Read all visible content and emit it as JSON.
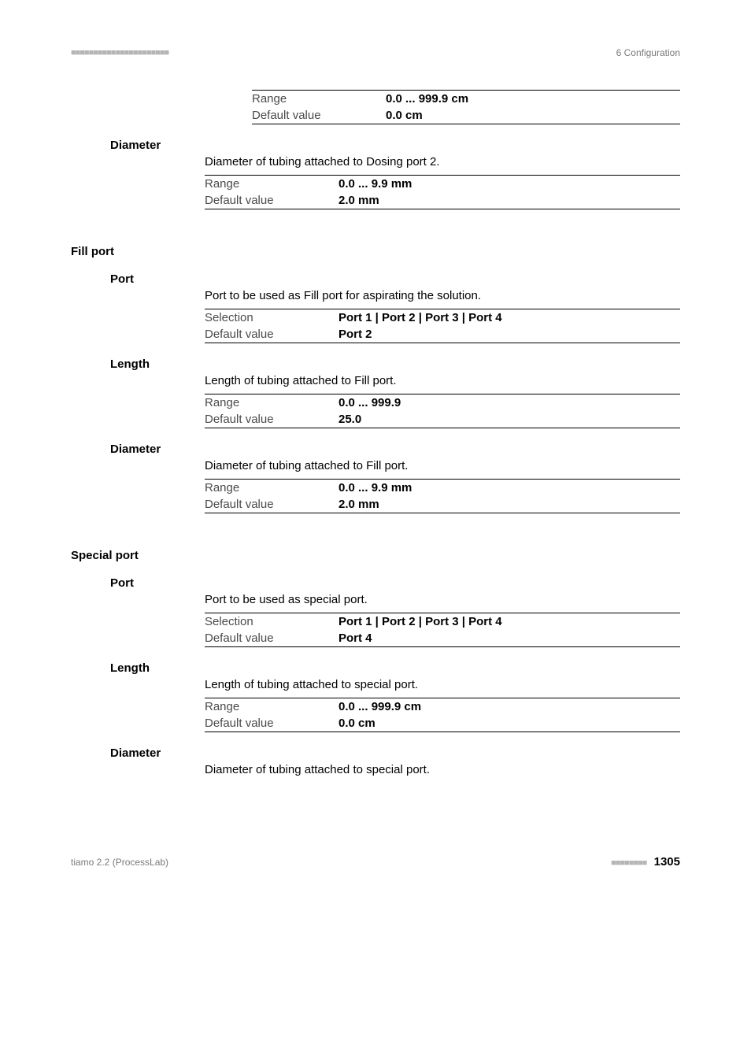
{
  "colors": {
    "text": "#000000",
    "muted": "#7a7a7a",
    "dots": "#b5b5b5",
    "rule": "#000000",
    "background": "#ffffff"
  },
  "typography": {
    "body_family": "Segoe UI, Helvetica Neue, Arial, sans-serif",
    "body_size_pt": 11,
    "label_weight": 700,
    "header_size_pt": 9
  },
  "header": {
    "left_decor": "■■■■■■■■■■■■■■■■■■■■■■",
    "right_text": "6 Configuration"
  },
  "footer": {
    "left_text": "tiamo 2.2 (ProcessLab)",
    "right_decor": "■■■■■■■■",
    "page_number": "1305"
  },
  "labels": {
    "range": "Range",
    "default_value": "Default value",
    "selection": "Selection"
  },
  "top_table": {
    "range": "0.0 ... 999.9 cm",
    "default": "0.0 cm"
  },
  "diameter1": {
    "label": "Diameter",
    "description": "Diameter of tubing attached to Dosing port 2.",
    "range": "0.0 ... 9.9 mm",
    "default": "2.0 mm"
  },
  "fill_port": {
    "section_label": "Fill port",
    "port": {
      "label": "Port",
      "description": "Port to be used as Fill port for aspirating the solution.",
      "selection": "Port 1 | Port 2 | Port 3 | Port 4",
      "default": "Port 2"
    },
    "length": {
      "label": "Length",
      "description": "Length of tubing attached to Fill port.",
      "range": "0.0 ... 999.9",
      "default": "25.0"
    },
    "diameter": {
      "label": "Diameter",
      "description": "Diameter of tubing attached to Fill port.",
      "range": "0.0 ... 9.9 mm",
      "default": "2.0 mm"
    }
  },
  "special_port": {
    "section_label": "Special port",
    "port": {
      "label": "Port",
      "description": "Port to be used as special port.",
      "selection": "Port 1 | Port 2 | Port 3 | Port 4",
      "default": "Port 4"
    },
    "length": {
      "label": "Length",
      "description": "Length of tubing attached to special port.",
      "range": "0.0 ... 999.9 cm",
      "default": "0.0 cm"
    },
    "diameter": {
      "label": "Diameter",
      "description": "Diameter of tubing attached to special port."
    }
  }
}
